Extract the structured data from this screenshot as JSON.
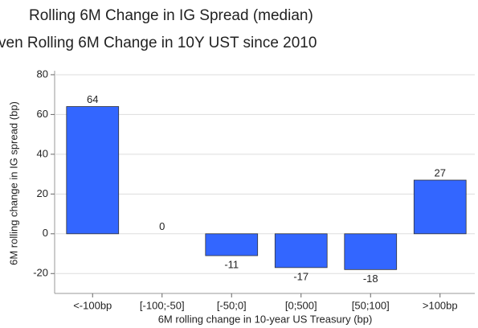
{
  "chart_data": {
    "type": "bar",
    "title": "Rolling 6M Change in IG Spread (median)",
    "subtitle": "ven  Rolling 6M Change in 10Y UST since 2010",
    "x_label": "6M rolling change in 10-year US Treasury (bp)",
    "y_label": "6M rolling change in IG spread (bp)",
    "categories": [
      "<-100bp",
      "[-100;-50]",
      "[-50;0]",
      "[0;500]",
      "[50;100]",
      ">100bp"
    ],
    "values": [
      64,
      0,
      -11,
      -17,
      -18,
      27
    ],
    "color": "#3366ff",
    "ylim": [
      -30,
      82
    ],
    "yticks": [
      -20,
      0,
      20,
      40,
      60,
      80
    ],
    "grid": true
  }
}
